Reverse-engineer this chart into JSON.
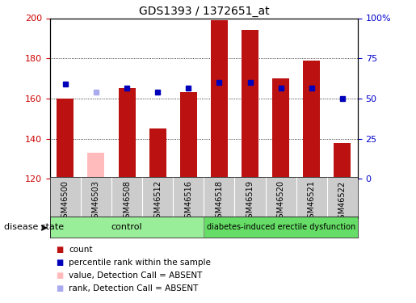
{
  "title": "GDS1393 / 1372651_at",
  "samples": [
    "GSM46500",
    "GSM46503",
    "GSM46508",
    "GSM46512",
    "GSM46516",
    "GSM46518",
    "GSM46519",
    "GSM46520",
    "GSM46521",
    "GSM46522"
  ],
  "counts": [
    160,
    133,
    165,
    145,
    163,
    199,
    194,
    170,
    179,
    138
  ],
  "counts_absent": [
    false,
    true,
    false,
    false,
    false,
    false,
    false,
    false,
    false,
    false
  ],
  "rank_left_axis_values": [
    167,
    163,
    165,
    163,
    165,
    168,
    168,
    165,
    165,
    160
  ],
  "rank_absent": [
    false,
    true,
    false,
    false,
    false,
    false,
    false,
    false,
    false,
    false
  ],
  "ylim_left": [
    120,
    200
  ],
  "ylim_right": [
    0,
    100
  ],
  "yticks_left": [
    120,
    140,
    160,
    180,
    200
  ],
  "yticks_right": [
    0,
    25,
    50,
    75,
    100
  ],
  "bar_color_normal": "#bb1111",
  "bar_color_absent": "#ffbbbb",
  "rank_color_normal": "#0000bb",
  "rank_color_absent": "#aaaaee",
  "control_color": "#99ee99",
  "condition_color": "#66dd66",
  "label_box_color": "#cccccc",
  "group_labels": [
    "control",
    "diabetes-induced erectile dysfunction"
  ],
  "group_ranges": [
    [
      0,
      4
    ],
    [
      5,
      9
    ]
  ],
  "bar_width": 0.55,
  "rank_marker_size": 5,
  "legend_items": [
    "count",
    "percentile rank within the sample",
    "value, Detection Call = ABSENT",
    "rank, Detection Call = ABSENT"
  ],
  "disease_state_label": "disease state",
  "axis_color_left": "#cc0000",
  "axis_color_right": "#0000cc"
}
